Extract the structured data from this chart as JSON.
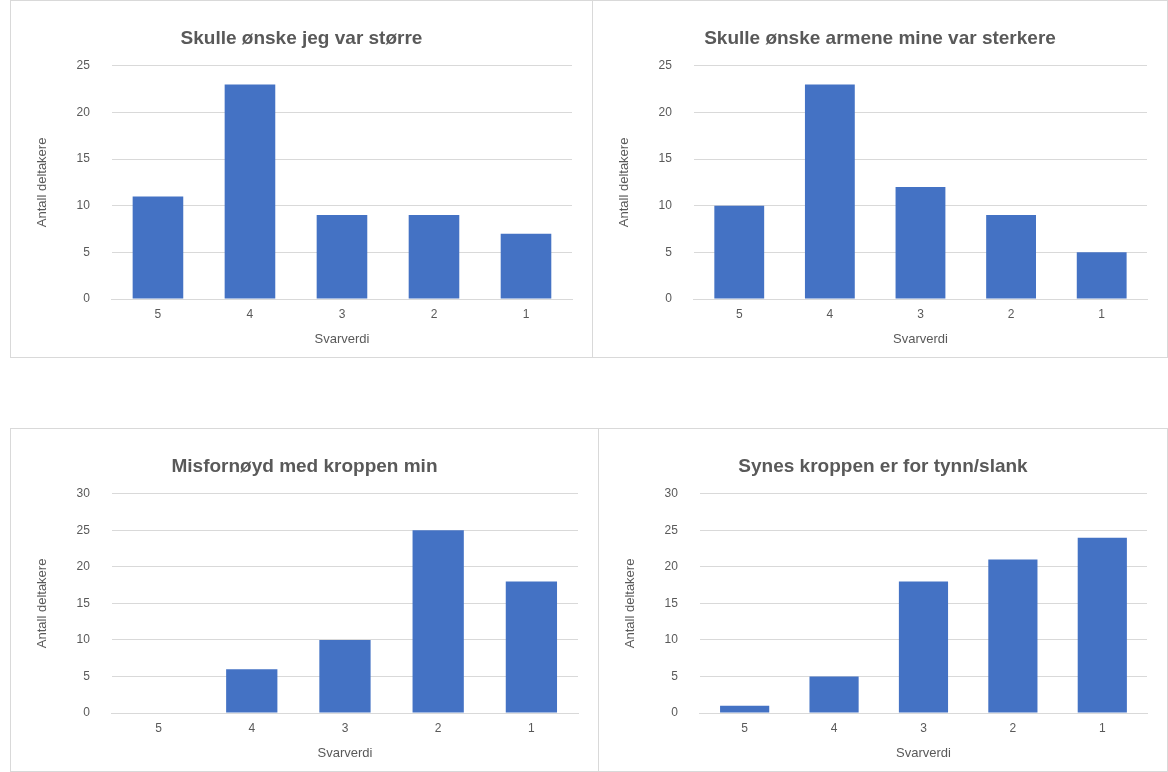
{
  "chart_data": [
    {
      "type": "bar",
      "title": "Skulle ønske jeg var større",
      "xlabel": "Svarverdi",
      "ylabel": "Antall deltakere",
      "categories": [
        "5",
        "4",
        "3",
        "2",
        "1"
      ],
      "values": [
        11,
        23,
        9,
        9,
        7
      ],
      "color": "#4472c4",
      "ylim": [
        0,
        25
      ],
      "yticks": [
        0,
        5,
        10,
        15,
        20,
        25
      ],
      "grid": "y"
    },
    {
      "type": "bar",
      "title": "Skulle ønske armene mine var sterkere",
      "xlabel": "Svarverdi",
      "ylabel": "Antall deltakere",
      "categories": [
        "5",
        "4",
        "3",
        "2",
        "1"
      ],
      "values": [
        10,
        23,
        12,
        9,
        5
      ],
      "color": "#4472c4",
      "ylim": [
        0,
        25
      ],
      "yticks": [
        0,
        5,
        10,
        15,
        20,
        25
      ],
      "grid": "y"
    },
    {
      "type": "bar",
      "title": "Misfornøyd med kroppen min",
      "xlabel": "Svarverdi",
      "ylabel": "Antall deltakere",
      "categories": [
        "5",
        "4",
        "3",
        "2",
        "1"
      ],
      "values": [
        0,
        6,
        10,
        25,
        18
      ],
      "color": "#4472c4",
      "ylim": [
        0,
        30
      ],
      "yticks": [
        0,
        5,
        10,
        15,
        20,
        25,
        30
      ],
      "grid": "y"
    },
    {
      "type": "bar",
      "title": "Synes kroppen er for tynn/slank",
      "xlabel": "Svarverdi",
      "ylabel": "Antall deltakere",
      "categories": [
        "5",
        "4",
        "3",
        "2",
        "1"
      ],
      "values": [
        1,
        5,
        18,
        21,
        24
      ],
      "color": "#4472c4",
      "ylim": [
        0,
        30
      ],
      "yticks": [
        0,
        5,
        10,
        15,
        20,
        25,
        30
      ],
      "grid": "y"
    }
  ]
}
